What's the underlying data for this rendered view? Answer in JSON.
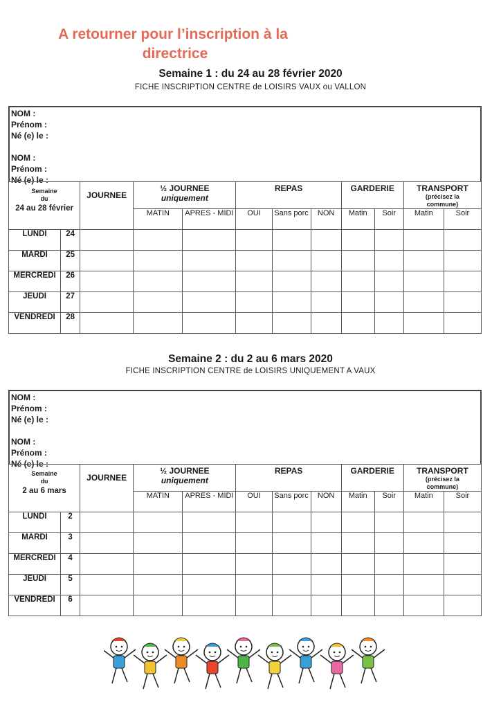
{
  "header": {
    "title_line1": "A retourner pour l’inscription à la",
    "title_line2": "directrice",
    "accent_color": "#e56a55"
  },
  "weeks": [
    {
      "title": "Semaine 1 : du 24 au 28 février 2020",
      "subtitle": "FICHE  INSCRIPTION   CENTRE de LOISIRS    VAUX ou VALLON",
      "info_fields": [
        "NOM :",
        "Prénom :",
        "Né (e) le :",
        "NOM :",
        "Prénom :",
        "Né (e) le :"
      ],
      "week_label": [
        "Semaine",
        "du",
        "24 au 28 février"
      ],
      "days": [
        {
          "name": "LUNDI",
          "num": "24"
        },
        {
          "name": "MARDI",
          "num": "25"
        },
        {
          "name": "MERCREDI",
          "num": "26"
        },
        {
          "name": "JEUDI",
          "num": "27"
        },
        {
          "name": "VENDREDI",
          "num": "28"
        }
      ]
    },
    {
      "title": "Semaine 2 : du 2 au 6 mars 2020",
      "subtitle": "FICHE  INSCRIPTION   CENTRE de LOISIRS    UNIQUEMENT A VAUX",
      "info_fields": [
        "NOM :",
        "Prénom :",
        "Né (e) le :",
        "NOM :",
        "Prénom :",
        "Né (e) le :"
      ],
      "week_label": [
        "Semaine",
        "du",
        "2 au 6 mars"
      ],
      "days": [
        {
          "name": "LUNDI",
          "num": "2"
        },
        {
          "name": "MARDI",
          "num": "3"
        },
        {
          "name": "MERCREDI",
          "num": "4"
        },
        {
          "name": "JEUDI",
          "num": "5"
        },
        {
          "name": "VENDREDI",
          "num": "6"
        }
      ]
    }
  ],
  "columns": {
    "journee": "JOURNEE",
    "demi_journee": "½  JOURNEE",
    "demi_journee_note": "uniquement",
    "repas": "REPAS",
    "garderie": "GARDERIE",
    "transport": "TRANSPORT",
    "transport_note": "(précisez la commune)",
    "sub": [
      "MATIN",
      "APRES - MIDI",
      "OUI",
      "Sans porc",
      "NON",
      "Matin",
      "Soir",
      "Matin",
      "Soir"
    ]
  },
  "illustration": {
    "icon": "children-dancing-illustration",
    "colors": [
      "#3aa0d8",
      "#f2c230",
      "#f08a24",
      "#e6452e",
      "#4fb548",
      "#f2d13c",
      "#3aa0d8",
      "#e96aa0",
      "#7ac043"
    ]
  }
}
